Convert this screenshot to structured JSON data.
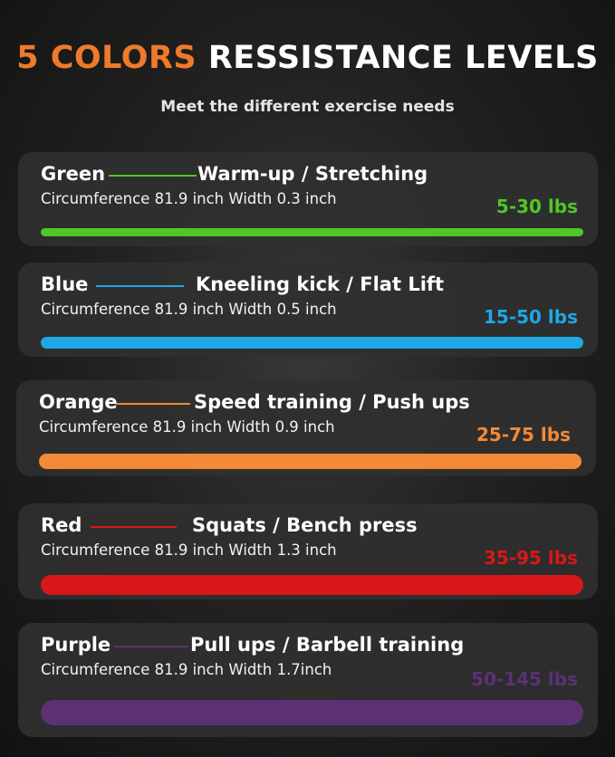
{
  "header": {
    "title_accent": "5 COLORS",
    "title_rest": "RESSISTANCE LEVELS",
    "subtitle": "Meet the different exercise needs",
    "accent_color": "#ef7a2c"
  },
  "bands": [
    {
      "color_name": "Green",
      "use": "Warm-up / Stretching",
      "spec": "Circumference 81.9 inch Width 0.3 inch",
      "range": "5-30 lbs",
      "color": "#4fc826"
    },
    {
      "color_name": "Blue",
      "use": "Kneeling kick / Flat Lift",
      "spec": "Circumference 81.9 inch  Width 0.5 inch",
      "range": "15-50 lbs",
      "color": "#1fa7e6"
    },
    {
      "color_name": "Orange",
      "use": "Speed training / Push ups",
      "spec": "Circumference 81.9 inch Width 0.9 inch",
      "range": "25-75 lbs",
      "color": "#f28a38"
    },
    {
      "color_name": "Red",
      "use": "Squats / Bench press",
      "spec": "Circumference 81.9 inch Width 1.3 inch",
      "range": "35-95 lbs",
      "color": "#d9161a"
    },
    {
      "color_name": "Purple",
      "use": "Pull ups / Barbell training",
      "spec": "Circumference 81.9 inch  Width 1.7inch",
      "range": "50-145 lbs",
      "color": "#5b3174"
    }
  ]
}
